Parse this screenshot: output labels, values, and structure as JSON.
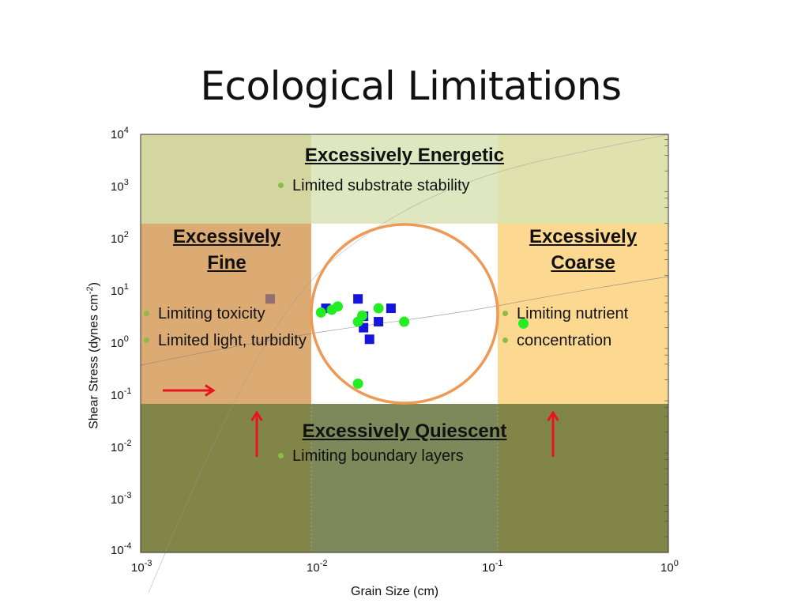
{
  "title": "Ecological Limitations",
  "chart_data": {
    "type": "scatter",
    "xlabel": "Grain Size (cm)",
    "ylabel": "Shear Stress (dynes cm",
    "ylabel_sup": "-2",
    "ylabel_tail": ")",
    "xscale": "log",
    "yscale": "log",
    "xlim": [
      0.001,
      1
    ],
    "ylim": [
      0.0001,
      10000
    ],
    "x_ticks": [
      {
        "base": "10",
        "exp": "-3"
      },
      {
        "base": "10",
        "exp": "-2"
      },
      {
        "base": "10",
        "exp": "-1"
      },
      {
        "base": "10",
        "exp": "0"
      }
    ],
    "y_ticks": [
      {
        "base": "10",
        "exp": "4"
      },
      {
        "base": "10",
        "exp": "3"
      },
      {
        "base": "10",
        "exp": "2"
      },
      {
        "base": "10",
        "exp": "1"
      },
      {
        "base": "10",
        "exp": "0"
      },
      {
        "base": "10",
        "exp": "-1"
      },
      {
        "base": "10",
        "exp": "-2"
      },
      {
        "base": "10",
        "exp": "-3"
      },
      {
        "base": "10",
        "exp": "-4"
      }
    ],
    "series": [
      {
        "marker": "square",
        "color": "#1515dd",
        "points": [
          [
            0.0113,
            4.7
          ],
          [
            0.0172,
            7.1
          ],
          [
            0.0185,
            3.3
          ],
          [
            0.0185,
            2.0
          ],
          [
            0.02,
            1.2
          ],
          [
            0.0225,
            2.6
          ],
          [
            0.0265,
            4.7
          ]
        ]
      },
      {
        "marker": "circle",
        "color": "#22ee22",
        "points": [
          [
            0.0106,
            3.9
          ],
          [
            0.0122,
            4.4
          ],
          [
            0.0132,
            5.1
          ],
          [
            0.0172,
            2.6
          ],
          [
            0.0182,
            3.4
          ],
          [
            0.0225,
            4.7
          ],
          [
            0.0315,
            2.6
          ],
          [
            0.0172,
            0.17
          ],
          [
            0.15,
            2.4
          ]
        ]
      },
      {
        "marker": "square",
        "color": "#946f6f",
        "points": [
          [
            0.00545,
            7.1
          ]
        ]
      }
    ],
    "regions": [
      {
        "id": "energetic",
        "heading": "Excessively Energetic",
        "bullets": [
          "Limited substrate stability"
        ],
        "color": "#dce6bd"
      },
      {
        "id": "fine",
        "heading_lines": [
          "Excessively",
          "Fine"
        ],
        "bullets": [
          "Limiting toxicity",
          "Limited light, turbidity"
        ],
        "color": "#d9a468"
      },
      {
        "id": "coarse",
        "heading_lines": [
          "Excessively",
          "Coarse"
        ],
        "bullets": [
          "Limiting nutrient",
          "concentration"
        ],
        "color": "#fdd68a"
      },
      {
        "id": "quiescent",
        "heading": "Excessively Quiescent",
        "bullets": [
          "Limiting boundary layers"
        ],
        "color": "#7a7f3e"
      }
    ],
    "highlight_circle_color": "#ee9955",
    "arrow_color": "#e8141c"
  }
}
